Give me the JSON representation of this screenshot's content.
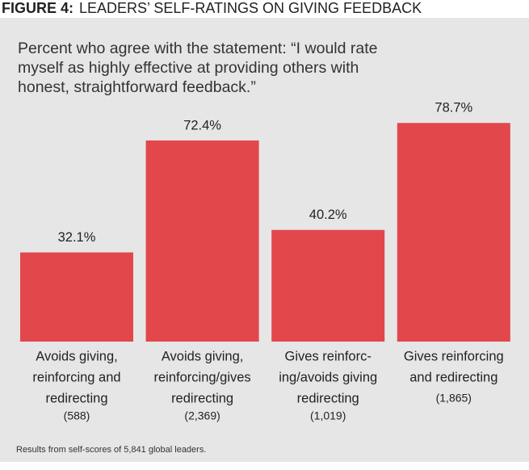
{
  "chart_data": {
    "type": "bar",
    "figure_label": "FIGURE 4:",
    "title": "LEADERS’ SELF-RATINGS ON GIVING FEEDBACK",
    "subtitle": [
      "Percent who agree with the statement: “I would rate",
      "myself as highly effective at providing others with",
      "honest, straightforward feedback.”"
    ],
    "categories": [
      [
        "Avoids giving,",
        "reinforcing and",
        "redirecting"
      ],
      [
        "Avoids giving,",
        "reinforcing/gives",
        "redirecting"
      ],
      [
        "Gives reinforc-",
        "ing/avoids giving",
        "redirecting"
      ],
      [
        "Gives reinforcing",
        "and redirecting"
      ]
    ],
    "counts": [
      "(588)",
      "(2,369)",
      "(1,019)",
      "(1,865)"
    ],
    "values": [
      32.1,
      72.4,
      40.2,
      78.7
    ],
    "value_labels": [
      "32.1%",
      "72.4%",
      "40.2%",
      "78.7%"
    ],
    "color": "#e2474c",
    "footnote": "Results from self-scores of 5,841 global leaders."
  }
}
